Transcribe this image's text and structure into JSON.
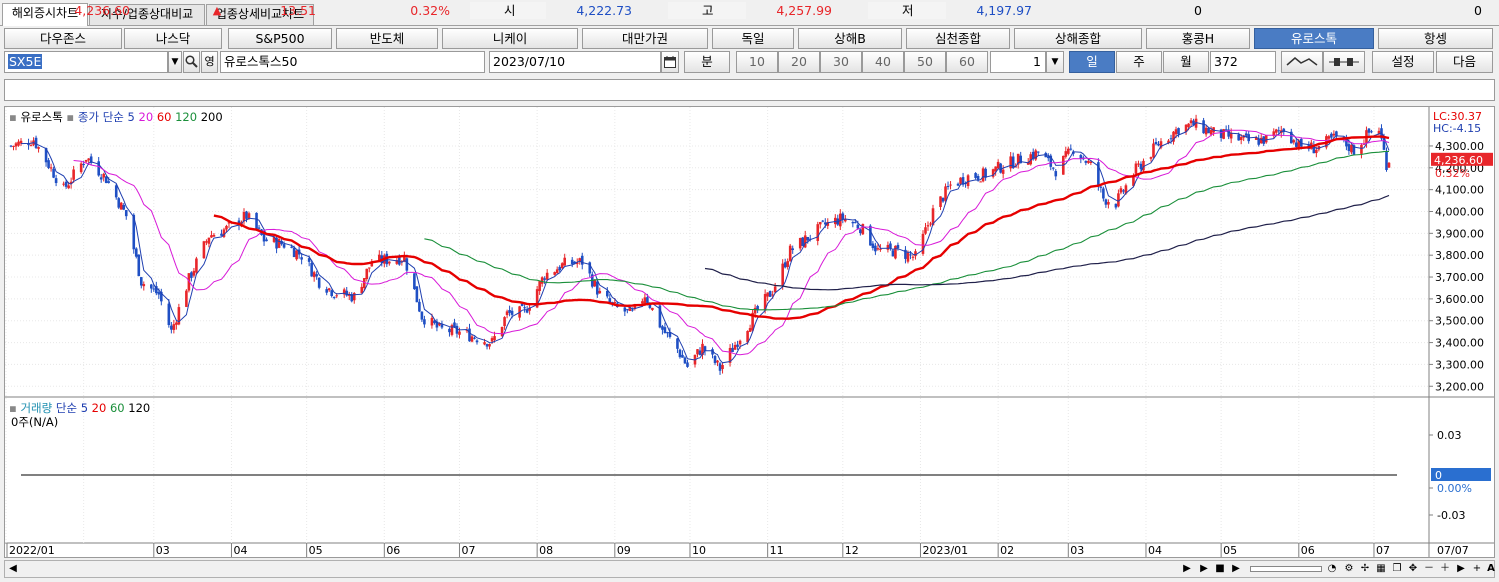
{
  "tabs": [
    "해외증시차트",
    "지수/업종상대비교",
    "업종상세비교차트"
  ],
  "indices": [
    "다우존스",
    "나스닥",
    "S&P500",
    "반도체",
    "니케이",
    "대만가권",
    "독일",
    "상해B",
    "심천종합",
    "상해종합",
    "홍콩H",
    "유로스톡",
    "항셍"
  ],
  "controls": {
    "symbol_code": "SX5E",
    "eng_toggle": "영",
    "symbol_name": "유로스톡스50",
    "date": "2023/07/10",
    "minute_label": "분",
    "minute_options": [
      "10",
      "20",
      "30",
      "40",
      "50",
      "60"
    ],
    "tick_value": "1",
    "period_day": "일",
    "period_week": "주",
    "period_month": "월",
    "count": "372",
    "settings_label": "설정",
    "next_label": "다음"
  },
  "quote": {
    "price": "4,236.60",
    "change_arrow": "▲",
    "change": "13.51",
    "change_pct": "0.32%",
    "open_label": "시",
    "open": "4,222.73",
    "high_label": "고",
    "high": "4,257.99",
    "low_label": "저",
    "low": "4,197.97",
    "volume": "0",
    "amount": "0"
  },
  "colors": {
    "up": "#e8262a",
    "down": "#1f4fc4",
    "ma5": "#1f3fb0",
    "ma20": "#d81ad8",
    "ma60": "#e60000",
    "ma120": "#1a8f3a",
    "ma200": "#20204a",
    "selected": "#4a7cc4"
  },
  "chart_data": {
    "type": "candlestick",
    "price_legend": {
      "name": "유로스톡",
      "series_label": "종가 단순",
      "periods": [
        "5",
        "20",
        "60",
        "120",
        "200"
      ]
    },
    "lc_label": "LC:30.37",
    "hc_label": "HC:-4.15",
    "current_price_label": "4,236.60",
    "current_pct_label": "0.32%",
    "y_ticks": [
      3200,
      3300,
      3400,
      3500,
      3600,
      3700,
      3800,
      3900,
      4000,
      4100,
      4200,
      4300
    ],
    "y_tick_labels": [
      "3,200.00",
      "3,300.00",
      "3,400.00",
      "3,500.00",
      "3,600.00",
      "3,700.00",
      "3,800.00",
      "3,900.00",
      "4,000.00",
      "4,100.00",
      "4,200.00",
      "4,300.00"
    ],
    "x_labels": [
      "2022/01",
      "03",
      "04",
      "05",
      "06",
      "07",
      "08",
      "09",
      "10",
      "11",
      "12",
      "2023/01",
      "02",
      "03",
      "04",
      "05",
      "06",
      "07"
    ],
    "x_end_label": "07/07",
    "ylim": [
      3160,
      4460
    ],
    "close_path": [
      [
        "2022-01-03",
        4300
      ],
      [
        "2022-01-12",
        4330
      ],
      [
        "2022-01-24",
        4100
      ],
      [
        "2022-02-02",
        4250
      ],
      [
        "2022-02-10",
        4150
      ],
      [
        "2022-02-18",
        3980
      ],
      [
        "2022-02-24",
        3680
      ],
      [
        "2022-03-03",
        3620
      ],
      [
        "2022-03-08",
        3450
      ],
      [
        "2022-03-15",
        3690
      ],
      [
        "2022-03-23",
        3890
      ],
      [
        "2022-03-30",
        3920
      ],
      [
        "2022-04-07",
        3980
      ],
      [
        "2022-04-14",
        3870
      ],
      [
        "2022-04-22",
        3850
      ],
      [
        "2022-04-29",
        3800
      ],
      [
        "2022-05-06",
        3680
      ],
      [
        "2022-05-12",
        3630
      ],
      [
        "2022-05-20",
        3610
      ],
      [
        "2022-05-27",
        3770
      ],
      [
        "2022-06-03",
        3780
      ],
      [
        "2022-06-09",
        3790
      ],
      [
        "2022-06-16",
        3520
      ],
      [
        "2022-06-23",
        3460
      ],
      [
        "2022-06-30",
        3450
      ],
      [
        "2022-07-06",
        3430
      ],
      [
        "2022-07-14",
        3400
      ],
      [
        "2022-07-20",
        3530
      ],
      [
        "2022-07-27",
        3540
      ],
      [
        "2022-08-04",
        3710
      ],
      [
        "2022-08-12",
        3760
      ],
      [
        "2022-08-19",
        3770
      ],
      [
        "2022-08-26",
        3620
      ],
      [
        "2022-09-01",
        3560
      ],
      [
        "2022-09-08",
        3530
      ],
      [
        "2022-09-13",
        3620
      ],
      [
        "2022-09-20",
        3460
      ],
      [
        "2022-09-26",
        3370
      ],
      [
        "2022-09-30",
        3290
      ],
      [
        "2022-10-06",
        3380
      ],
      [
        "2022-10-13",
        3280
      ],
      [
        "2022-10-20",
        3410
      ],
      [
        "2022-10-27",
        3530
      ],
      [
        "2022-11-03",
        3640
      ],
      [
        "2022-11-10",
        3820
      ],
      [
        "2022-11-17",
        3880
      ],
      [
        "2022-11-24",
        3940
      ],
      [
        "2022-12-01",
        3970
      ],
      [
        "2022-12-08",
        3930
      ],
      [
        "2022-12-15",
        3820
      ],
      [
        "2022-12-22",
        3820
      ],
      [
        "2022-12-30",
        3790
      ],
      [
        "2023-01-06",
        4000
      ],
      [
        "2023-01-13",
        4120
      ],
      [
        "2023-01-20",
        4160
      ],
      [
        "2023-01-27",
        4170
      ],
      [
        "2023-02-03",
        4210
      ],
      [
        "2023-02-10",
        4240
      ],
      [
        "2023-02-17",
        4270
      ],
      [
        "2023-02-24",
        4190
      ],
      [
        "2023-03-03",
        4290
      ],
      [
        "2023-03-10",
        4210
      ],
      [
        "2023-03-15",
        4060
      ],
      [
        "2023-03-20",
        4040
      ],
      [
        "2023-03-28",
        4190
      ],
      [
        "2023-04-06",
        4310
      ],
      [
        "2023-04-14",
        4380
      ],
      [
        "2023-04-20",
        4400
      ],
      [
        "2023-04-28",
        4360
      ],
      [
        "2023-05-05",
        4340
      ],
      [
        "2023-05-12",
        4320
      ],
      [
        "2023-05-19",
        4330
      ],
      [
        "2023-05-26",
        4380
      ],
      [
        "2023-06-01",
        4300
      ],
      [
        "2023-06-08",
        4290
      ],
      [
        "2023-06-16",
        4340
      ],
      [
        "2023-06-23",
        4280
      ],
      [
        "2023-06-29",
        4360
      ],
      [
        "2023-07-03",
        4380
      ],
      [
        "2023-07-06",
        4220
      ],
      [
        "2023-07-07",
        4237
      ]
    ],
    "volume_panel": {
      "name": "거래량",
      "series_label": "단순",
      "periods": [
        "5",
        "20",
        "60",
        "120"
      ],
      "no_data_label": "0주(N/A)",
      "y_tick_labels": [
        "0.03",
        "0",
        "0.00%",
        "-0.03"
      ]
    }
  }
}
